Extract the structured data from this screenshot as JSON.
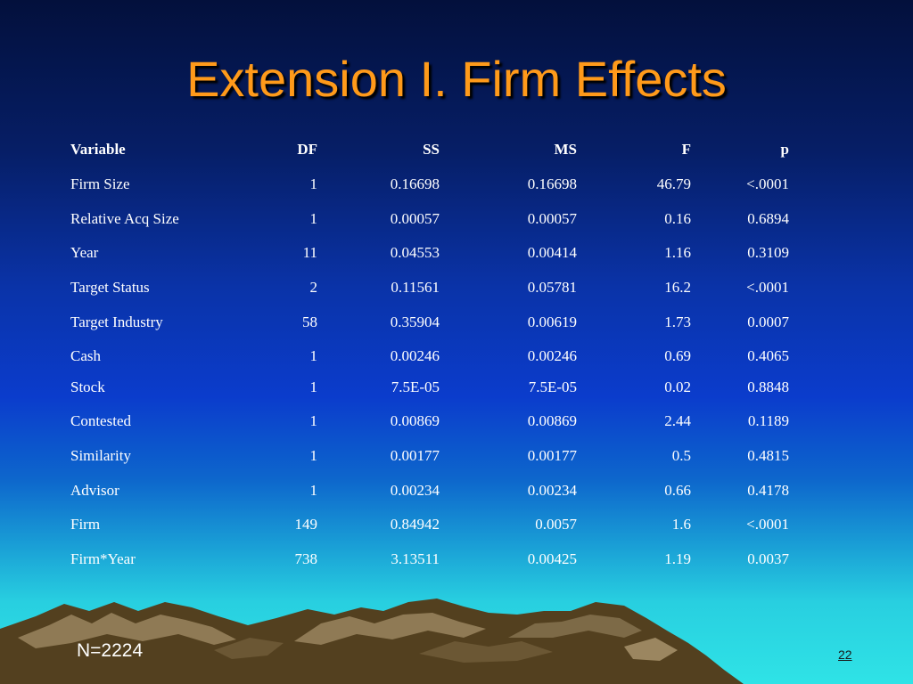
{
  "slide": {
    "title": "Extension I. Firm Effects",
    "note": "N=2224",
    "page_number": "22"
  },
  "table": {
    "headers": [
      "Variable",
      "DF",
      "SS",
      "MS",
      "F",
      "p"
    ],
    "rows": [
      [
        "Firm Size",
        "1",
        "0.16698",
        "0.16698",
        "46.79",
        "<.0001"
      ],
      [
        "Relative Acq Size",
        "1",
        "0.00057",
        "0.00057",
        "0.16",
        "0.6894"
      ],
      [
        "Year",
        "11",
        "0.04553",
        "0.00414",
        "1.16",
        "0.3109"
      ],
      [
        "Target Status",
        "2",
        "0.11561",
        "0.05781",
        "16.2",
        "<.0001"
      ],
      [
        "Target Industry",
        "58",
        "0.35904",
        "0.00619",
        "1.73",
        "0.0007"
      ],
      [
        "Cash",
        "1",
        "0.00246",
        "0.00246",
        "0.69",
        "0.4065"
      ],
      [
        "Stock",
        "1",
        "7.5E-05",
        "7.5E-05",
        "0.02",
        "0.8848"
      ],
      [
        "Contested",
        "1",
        "0.00869",
        "0.00869",
        "2.44",
        "0.1189"
      ],
      [
        "Similarity",
        "1",
        "0.00177",
        "0.00177",
        "0.5",
        "0.4815"
      ],
      [
        "Advisor",
        "1",
        "0.00234",
        "0.00234",
        "0.66",
        "0.4178"
      ],
      [
        "Firm",
        "149",
        "0.84942",
        "0.0057",
        "1.6",
        "<.0001"
      ],
      [
        "Firm*Year",
        "738",
        "3.13511",
        "0.00425",
        "1.19",
        "0.0037"
      ]
    ]
  }
}
